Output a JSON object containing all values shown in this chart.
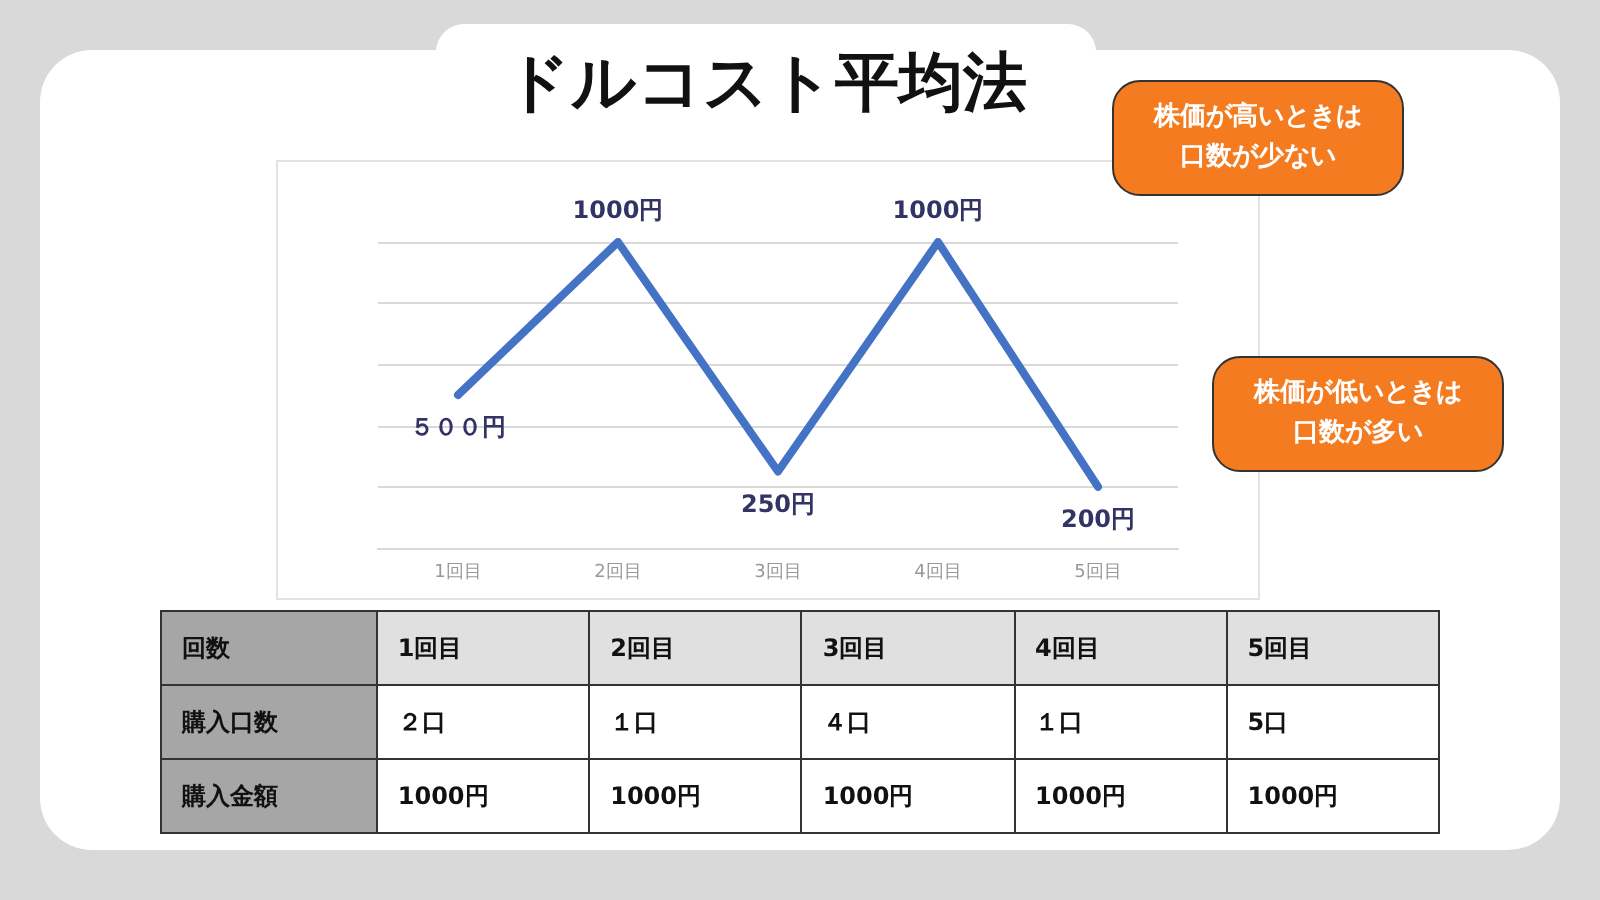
{
  "chart_data": {
    "type": "line",
    "title": "ドルコスト平均法",
    "categories": [
      "1回目",
      "2回目",
      "3回目",
      "4回目",
      "5回目"
    ],
    "values": [
      500,
      1000,
      250,
      1000,
      200
    ],
    "value_labels": [
      "５００円",
      "1000円",
      "250円",
      "1000円",
      "200円"
    ],
    "color": "#4472c4",
    "grid": "y",
    "marker": "none",
    "line_style": "solid",
    "tick_labels": "x",
    "annotations": [
      "株価が高いときは口数が少ない",
      "株価が低いときは口数が多い",
      "回数",
      "1回目",
      "2回目",
      "3回目",
      "4回目",
      "5回目",
      "購入口数",
      "２口",
      "１口",
      "４口",
      "１口",
      "5口",
      "購入金額",
      "1000円",
      "1000円",
      "1000円",
      "1000円",
      "1000円"
    ]
  }
}
